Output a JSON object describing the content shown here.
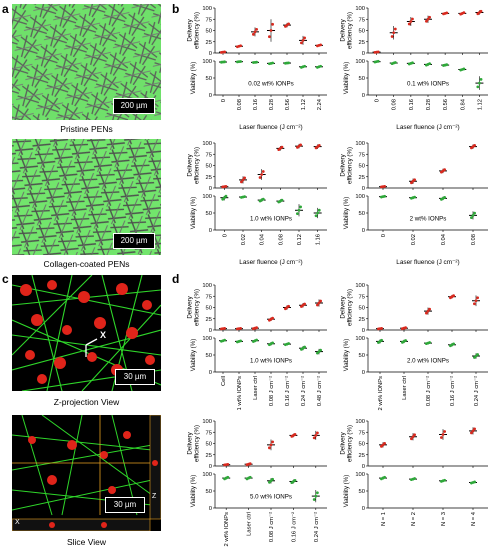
{
  "panels": {
    "a": {
      "letter": "a",
      "images": [
        {
          "caption": "Pristine PENs",
          "scale_label": "200 µm"
        },
        {
          "caption": "Collagen-coated PENs",
          "scale_label": "200 µm"
        }
      ]
    },
    "b": {
      "letter": "b"
    },
    "c": {
      "letter": "c",
      "images": [
        {
          "caption": "Z-projection View",
          "scale_label": "30 µm",
          "marker": "X"
        },
        {
          "caption": "Slice View",
          "scale_label": "30 µm",
          "axis_z": "Z",
          "axis_x": "X"
        }
      ]
    },
    "d": {
      "letter": "d"
    }
  },
  "colors": {
    "delivery": "#d92a1f",
    "viability": "#2fa83a",
    "mean_line": "#000000",
    "fiber": "#2bd42b",
    "cell": "#e01b10"
  },
  "chart_data": [
    {
      "id": "b1",
      "type": "scatter",
      "annotation": "0.02 wt% IONPs",
      "xlabel": "Laser fluence (J cm⁻²)",
      "categories": [
        "0",
        "0.08",
        "0.16",
        "0.28",
        "0.56",
        "1.12",
        "2.24"
      ],
      "top": {
        "ylabel": [
          "Delivery",
          "efficiency (%)"
        ],
        "ylim": [
          0,
          100
        ],
        "yticks": [
          0,
          25,
          50,
          75,
          100
        ],
        "series_name": "Delivery efficiency",
        "values": [
          2,
          15,
          47,
          50,
          62,
          28,
          17
        ],
        "err": [
          1,
          2,
          10,
          25,
          5,
          10,
          2
        ]
      },
      "bottom": {
        "ylabel": [
          "Viability (%)"
        ],
        "ylim": [
          0,
          100
        ],
        "yticks": [
          0,
          50,
          100
        ],
        "series_name": "Viability",
        "values": [
          97,
          98,
          96,
          93,
          94,
          83,
          83
        ],
        "err": [
          1,
          1,
          1,
          2,
          1,
          3,
          3
        ]
      }
    },
    {
      "id": "b2",
      "type": "scatter",
      "annotation": "0.1 wt% IONPs",
      "xlabel": "Laser fluence (J cm⁻²)",
      "categories": [
        "0",
        "0.08",
        "0.16",
        "0.28",
        "0.56",
        "0.84",
        "1.12"
      ],
      "top": {
        "ylabel": [
          "Delivery",
          "efficiency (%)"
        ],
        "ylim": [
          0,
          100
        ],
        "yticks": [
          0,
          25,
          50,
          75,
          100
        ],
        "series_name": "Delivery efficiency",
        "values": [
          2,
          45,
          70,
          75,
          88,
          88,
          90
        ],
        "err": [
          1,
          15,
          10,
          8,
          2,
          3,
          5
        ]
      },
      "bottom": {
        "ylabel": [
          "Viability (%)"
        ],
        "ylim": [
          0,
          100
        ],
        "yticks": [
          0,
          50,
          100
        ],
        "series_name": "Viability",
        "values": [
          98,
          94,
          93,
          90,
          88,
          75,
          35
        ],
        "err": [
          2,
          3,
          3,
          4,
          2,
          3,
          20
        ]
      }
    },
    {
      "id": "b3",
      "type": "scatter",
      "annotation": "1.0 wt% IONPs",
      "xlabel": "Laser fluence (J cm⁻²)",
      "categories": [
        "0",
        "0.02",
        "0.04",
        "0.08",
        "0.12",
        "1.16"
      ],
      "top": {
        "ylabel": [
          "Delivery",
          "efficiency (%)"
        ],
        "ylim": [
          0,
          100
        ],
        "yticks": [
          0,
          25,
          50,
          75,
          100
        ],
        "series_name": "Delivery efficiency",
        "values": [
          3,
          18,
          30,
          88,
          93,
          92
        ],
        "err": [
          1,
          8,
          12,
          5,
          5,
          5
        ]
      },
      "bottom": {
        "ylabel": [
          "Viability (%)"
        ],
        "ylim": [
          0,
          100
        ],
        "yticks": [
          0,
          50,
          100
        ],
        "series_name": "Viability",
        "values": [
          95,
          97,
          88,
          85,
          58,
          50
        ],
        "err": [
          8,
          2,
          5,
          5,
          18,
          15
        ]
      }
    },
    {
      "id": "b4",
      "type": "scatter",
      "annotation": "2 wt% IONPs",
      "xlabel": "Laser fluence (J cm⁻²)",
      "categories": [
        "0",
        "0.02",
        "0.04",
        "0.08"
      ],
      "top": {
        "ylabel": [
          "Delivery",
          "efficiency (%)"
        ],
        "ylim": [
          0,
          100
        ],
        "yticks": [
          0,
          25,
          50,
          75,
          100
        ],
        "series_name": "Delivery efficiency",
        "values": [
          3,
          15,
          38,
          92
        ],
        "err": [
          1,
          6,
          5,
          5
        ]
      },
      "bottom": {
        "ylabel": [
          "Viability (%)"
        ],
        "ylim": [
          0,
          100
        ],
        "yticks": [
          0,
          50,
          100
        ],
        "series_name": "Viability",
        "values": [
          98,
          95,
          93,
          43
        ],
        "err": [
          2,
          3,
          5,
          12
        ]
      }
    },
    {
      "id": "d1",
      "type": "scatter",
      "annotation": "1.0 wt% IONPs",
      "xlabel": "",
      "categories": [
        "Cell",
        "1 wt% IONPs",
        "Laser ctrl",
        "0.08 J cm⁻²",
        "0.16 J cm⁻²",
        "0.24 J cm⁻²",
        "0.48 J cm⁻²"
      ],
      "top": {
        "ylabel": [
          "Delivery",
          "efficiency (%)"
        ],
        "ylim": [
          0,
          100
        ],
        "yticks": [
          0,
          25,
          50,
          75,
          100
        ],
        "series_name": "Delivery efficiency",
        "values": [
          3,
          3,
          4,
          24,
          50,
          55,
          60
        ],
        "err": [
          1,
          1,
          2,
          4,
          5,
          5,
          8
        ]
      },
      "bottom": {
        "ylabel": [
          "Viability (%)"
        ],
        "ylim": [
          0,
          100
        ],
        "yticks": [
          0,
          50,
          100
        ],
        "series_name": "Viability",
        "values": [
          92,
          90,
          92,
          83,
          82,
          70,
          60
        ],
        "err": [
          3,
          3,
          4,
          5,
          3,
          6,
          8
        ]
      }
    },
    {
      "id": "d2",
      "type": "scatter",
      "annotation": "2.0 wt% IONPs",
      "xlabel": "",
      "categories": [
        "2 wt% IONPs",
        "Laser ctrl",
        "0.08 J cm⁻²",
        "0.16 J cm⁻²",
        "0.24 J cm⁻²"
      ],
      "top": {
        "ylabel": [
          "Delivery",
          "efficiency (%)"
        ],
        "ylim": [
          0,
          100
        ],
        "yticks": [
          0,
          25,
          50,
          75,
          100
        ],
        "series_name": "Delivery efficiency",
        "values": [
          3,
          4,
          42,
          74,
          65
        ],
        "err": [
          1,
          2,
          8,
          4,
          12
        ]
      },
      "bottom": {
        "ylabel": [
          "Viability (%)"
        ],
        "ylim": [
          0,
          100
        ],
        "yticks": [
          0,
          50,
          100
        ],
        "series_name": "Viability",
        "values": [
          90,
          90,
          85,
          80,
          47
        ],
        "err": [
          6,
          5,
          3,
          5,
          8
        ]
      }
    },
    {
      "id": "d3",
      "type": "scatter",
      "annotation": "5.0 wt% IONPs",
      "xlabel": "",
      "categories": [
        "2 wt% IONPs",
        "Laser ctrl",
        "0.08 J cm⁻²",
        "0.16 J cm⁻²",
        "0.24 J cm⁻²"
      ],
      "top": {
        "ylabel": [
          "Delivery",
          "efficiency (%)"
        ],
        "ylim": [
          0,
          100
        ],
        "yticks": [
          0,
          25,
          50,
          75,
          100
        ],
        "series_name": "Delivery efficiency",
        "values": [
          3,
          4,
          47,
          68,
          68
        ],
        "err": [
          1,
          2,
          12,
          4,
          10
        ]
      },
      "bottom": {
        "ylabel": [
          "Viability (%)"
        ],
        "ylim": [
          0,
          100
        ],
        "yticks": [
          0,
          50,
          100
        ],
        "series_name": "Viability",
        "values": [
          88,
          88,
          80,
          78,
          35
        ],
        "err": [
          4,
          4,
          8,
          6,
          18
        ]
      }
    },
    {
      "id": "d4",
      "type": "scatter",
      "annotation": "",
      "xlabel": "",
      "categories": [
        "N = 1",
        "N = 2",
        "N = 3",
        "N = 4"
      ],
      "top": {
        "ylabel": [
          "Delivery",
          "efficiency (%)"
        ],
        "ylim": [
          0,
          100
        ],
        "yticks": [
          0,
          25,
          50,
          75,
          100
        ],
        "series_name": "Delivery efficiency",
        "values": [
          47,
          65,
          70,
          78
        ],
        "err": [
          6,
          8,
          12,
          8
        ]
      },
      "bottom": {
        "ylabel": [
          "Viability (%)"
        ],
        "ylim": [
          0,
          100
        ],
        "yticks": [
          0,
          50,
          100
        ],
        "series_name": "Viability",
        "values": [
          88,
          85,
          80,
          75
        ],
        "err": [
          4,
          3,
          3,
          3
        ]
      }
    }
  ]
}
